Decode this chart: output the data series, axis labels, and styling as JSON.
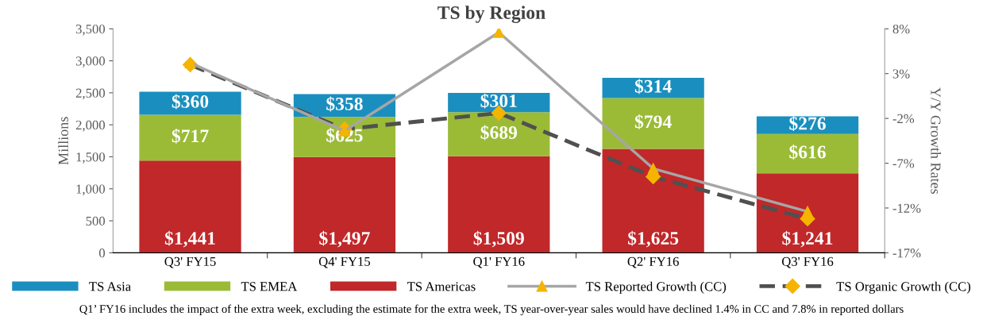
{
  "chart_data": {
    "type": "bar",
    "title": "TS by Region",
    "ylabel": "Millions",
    "y2label": "Y/Y Growth Rates",
    "categories": [
      "Q3' FY15",
      "Q4' FY15",
      "Q1' FY16",
      "Q2' FY16",
      "Q3' FY16"
    ],
    "stacked": true,
    "legend": "bottom",
    "grid": false,
    "ylim": [
      0,
      3500
    ],
    "yticks": [
      0,
      500,
      {
        "value": 1000,
        "label": "1,000"
      },
      {
        "value": 1500,
        "label": "1,500"
      },
      {
        "value": 2000,
        "label": "2,000"
      },
      {
        "value": 2500,
        "label": "2,500"
      },
      {
        "value": 3000,
        "label": "3,000"
      },
      {
        "value": 3500,
        "label": "3,500"
      }
    ],
    "y2lim": [
      -17,
      8
    ],
    "y2ticks": [
      {
        "value": -17,
        "label": "-17%"
      },
      {
        "value": -12,
        "label": "-12%"
      },
      {
        "value": -7,
        "label": "-7%"
      },
      {
        "value": -2,
        "label": "-2%"
      },
      {
        "value": 3,
        "label": "3%"
      },
      {
        "value": 8,
        "label": "8%"
      }
    ],
    "series": [
      {
        "name": "TS Americas",
        "color": "#c0282a",
        "values": [
          1441,
          1497,
          1509,
          1625,
          1241
        ],
        "value_labels": [
          "$1,441",
          "$1,497",
          "$1,509",
          "$1,625",
          "$1,241"
        ]
      },
      {
        "name": "TS EMEA",
        "color": "#9bbb37",
        "values": [
          717,
          625,
          689,
          794,
          616
        ],
        "value_labels": [
          "$717",
          "$625",
          "$689",
          "$794",
          "$616"
        ]
      },
      {
        "name": "TS Asia",
        "color": "#1a8fbf",
        "values": [
          360,
          358,
          301,
          314,
          276
        ],
        "value_labels": [
          "$360",
          "$358",
          "$301",
          "$314",
          "$276"
        ]
      },
      {
        "name": "TS Reported Growth (CC)",
        "type": "line",
        "axis": "y2",
        "color": "#a6a6a6",
        "marker": "triangle",
        "line_style": "solid",
        "values": [
          4.2,
          -3.4,
          7.6,
          -7.6,
          -12.4
        ]
      },
      {
        "name": "TS Organic Growth (CC)",
        "type": "line",
        "axis": "y2",
        "color": "#505050",
        "marker": "diamond",
        "line_style": "dashed",
        "values": [
          4.0,
          -3.2,
          -1.4,
          -8.5,
          -13.2
        ]
      }
    ],
    "annotations": [
      "Q1’ FY16 includes the impact of the extra week, excluding the estimate for the extra week, TS year-over-year sales would have declined 1.4% in CC and 7.8% in reported dollars"
    ]
  }
}
